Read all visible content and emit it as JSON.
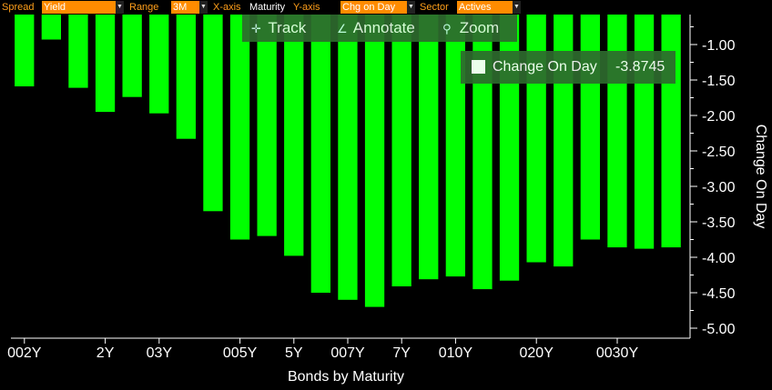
{
  "toolbar": {
    "spread_label": "Spread",
    "spread_value": "Yield",
    "range_label": "Range",
    "range_value": "3M",
    "xaxis_label": "X-axis",
    "xaxis_value": "Maturity",
    "yaxis_label": "Y-axis",
    "yaxis_value": "Chg on Day",
    "sector_label": "Sector",
    "sector_value": "Actives"
  },
  "tools": {
    "track": "Track",
    "annotate": "Annotate",
    "zoom": "Zoom"
  },
  "legend": {
    "name": "Change On Day",
    "value": "-3.8745"
  },
  "colors": {
    "bar": "#00ff00",
    "background": "#000000",
    "toolbar_field": "#ff8c00",
    "overlay": "#2e6b2e"
  },
  "chart_data": {
    "type": "bar",
    "xlabel": "Bonds by Maturity",
    "ylabel": "Change On Day",
    "ylim": [
      -5.1,
      -0.6
    ],
    "y_ticks": [
      "-1.00",
      "-1.50",
      "-2.00",
      "-2.50",
      "-3.00",
      "-3.50",
      "-4.00",
      "-4.50",
      "-5.00"
    ],
    "grid": false,
    "x_tick_labels": [
      "002Y",
      "2Y",
      "03Y",
      "005Y",
      "5Y",
      "007Y",
      "7Y",
      "010Y",
      "020Y",
      "0030Y"
    ],
    "values": [
      -1.59,
      -0.93,
      -1.61,
      -1.95,
      -1.74,
      -1.97,
      -2.33,
      -3.35,
      -3.75,
      -3.7,
      -3.98,
      -4.5,
      -4.6,
      -4.7,
      -4.41,
      -4.31,
      -4.27,
      -4.45,
      -4.33,
      -4.07,
      -4.13,
      -3.75,
      -3.86,
      -3.88,
      -3.86
    ]
  }
}
